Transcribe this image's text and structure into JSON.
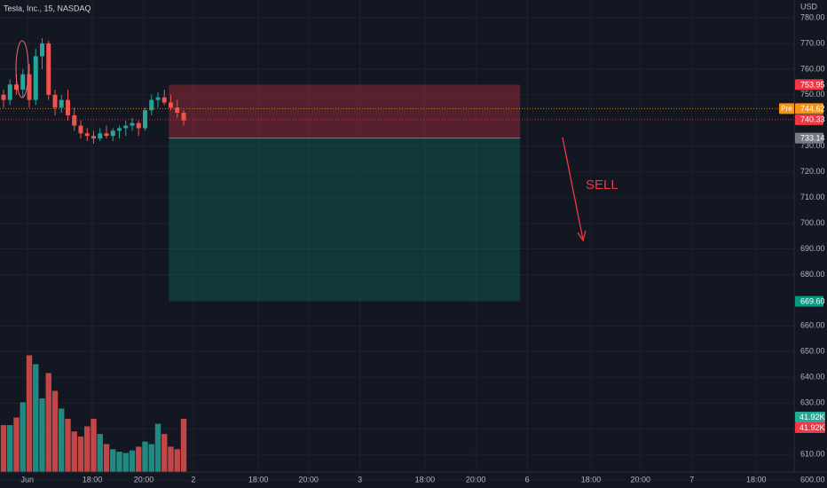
{
  "chart_data": {
    "type": "candlestick",
    "title": "Tesla, Inc., 15, NASDAQ",
    "currency": "USD",
    "annotation": "SELL",
    "up_color": "#26a69a",
    "down_color": "#ef5350",
    "open": [
      750,
      748,
      754,
      752,
      758,
      748,
      765,
      770,
      750,
      745,
      748,
      742,
      738,
      735,
      734,
      733,
      735,
      734,
      736,
      737,
      738,
      739,
      737,
      744,
      748,
      749,
      747,
      745,
      743
    ],
    "high": [
      752,
      756,
      758,
      760,
      762,
      768,
      772,
      771,
      752,
      750,
      752,
      745,
      740,
      737,
      736,
      737,
      738,
      737,
      738,
      740,
      741,
      740,
      745,
      750,
      751,
      752,
      750,
      748,
      744
    ],
    "low": [
      745,
      746,
      750,
      749,
      745,
      746,
      760,
      748,
      742,
      743,
      740,
      736,
      733,
      732,
      731,
      732,
      733,
      732,
      733,
      734,
      736,
      734,
      736,
      742,
      745,
      746,
      744,
      741,
      738
    ],
    "close": [
      748,
      754,
      752,
      758,
      748,
      765,
      770,
      750,
      745,
      748,
      742,
      738,
      735,
      734,
      733,
      735,
      734,
      736,
      737,
      738,
      739,
      737,
      744,
      748,
      749,
      747,
      745,
      743,
      740
    ],
    "volume": [
      37,
      37,
      43,
      55,
      92,
      85,
      58,
      78,
      64,
      50,
      42,
      32,
      28,
      36,
      42,
      30,
      22,
      18,
      16,
      15,
      17,
      20,
      24,
      22,
      38,
      30,
      20,
      18,
      42
    ],
    "xlim": [
      -0.55,
      122.2
    ],
    "xticks": [
      {
        "value": 3.7,
        "label": "Jun"
      },
      {
        "value": 13.8,
        "label": "18:00"
      },
      {
        "value": 21.8,
        "label": "20:00"
      },
      {
        "value": 29.5,
        "label": "2"
      },
      {
        "value": 39.6,
        "label": "18:00"
      },
      {
        "value": 47.4,
        "label": "20:00"
      },
      {
        "value": 55.4,
        "label": "3"
      },
      {
        "value": 65.5,
        "label": "18:00"
      },
      {
        "value": 73.4,
        "label": "20:00"
      },
      {
        "value": 81.4,
        "label": "6"
      },
      {
        "value": 91.3,
        "label": "18:00"
      },
      {
        "value": 99,
        "label": "20:00"
      },
      {
        "value": 107,
        "label": "7"
      },
      {
        "value": 117,
        "label": "18:00"
      }
    ],
    "ylim": [
      596.91,
      786.91
    ],
    "yticks": [
      {
        "value": 780,
        "label": "780.00"
      },
      {
        "value": 770,
        "label": "770.00"
      },
      {
        "value": 760,
        "label": "760.00"
      },
      {
        "value": 750,
        "label": "750.00"
      },
      {
        "value": 730,
        "label": "730.00"
      },
      {
        "value": 720,
        "label": "720.00"
      },
      {
        "value": 710,
        "label": "710.00"
      },
      {
        "value": 700,
        "label": "700.00"
      },
      {
        "value": 690,
        "label": "690.00"
      },
      {
        "value": 680,
        "label": "680.00"
      },
      {
        "value": 660,
        "label": "660.00"
      },
      {
        "value": 650,
        "label": "650.00"
      },
      {
        "value": 640,
        "label": "640.00"
      },
      {
        "value": 630,
        "label": "630.00"
      },
      {
        "value": 620,
        "label": "620.00"
      },
      {
        "value": 610,
        "label": "610.00"
      },
      {
        "value": 600,
        "label": "600.00"
      }
    ],
    "grid": true,
    "position": {
      "stop": 753.95,
      "entry": 733.14,
      "target": 669.6,
      "start": 25.7,
      "end": 80.3
    },
    "price_badges": [
      {
        "value": 753.95,
        "color": "#f23645"
      },
      {
        "value": 744.62,
        "color": "#f7931a",
        "tag": "Pre"
      },
      {
        "value": 740.33,
        "color": "#f23645"
      },
      {
        "value": 733.14,
        "color": "#787b86"
      },
      {
        "value": {
          "value": 669.6,
          "label": "669.60"
        },
        "color": "#089981"
      }
    ],
    "volume_badges": [
      {
        "value": 41.92,
        "label": "41.92K",
        "color": "#22ab94"
      },
      {
        "value": 41.92,
        "label": "41.92K",
        "color": "#f23645"
      }
    ]
  }
}
